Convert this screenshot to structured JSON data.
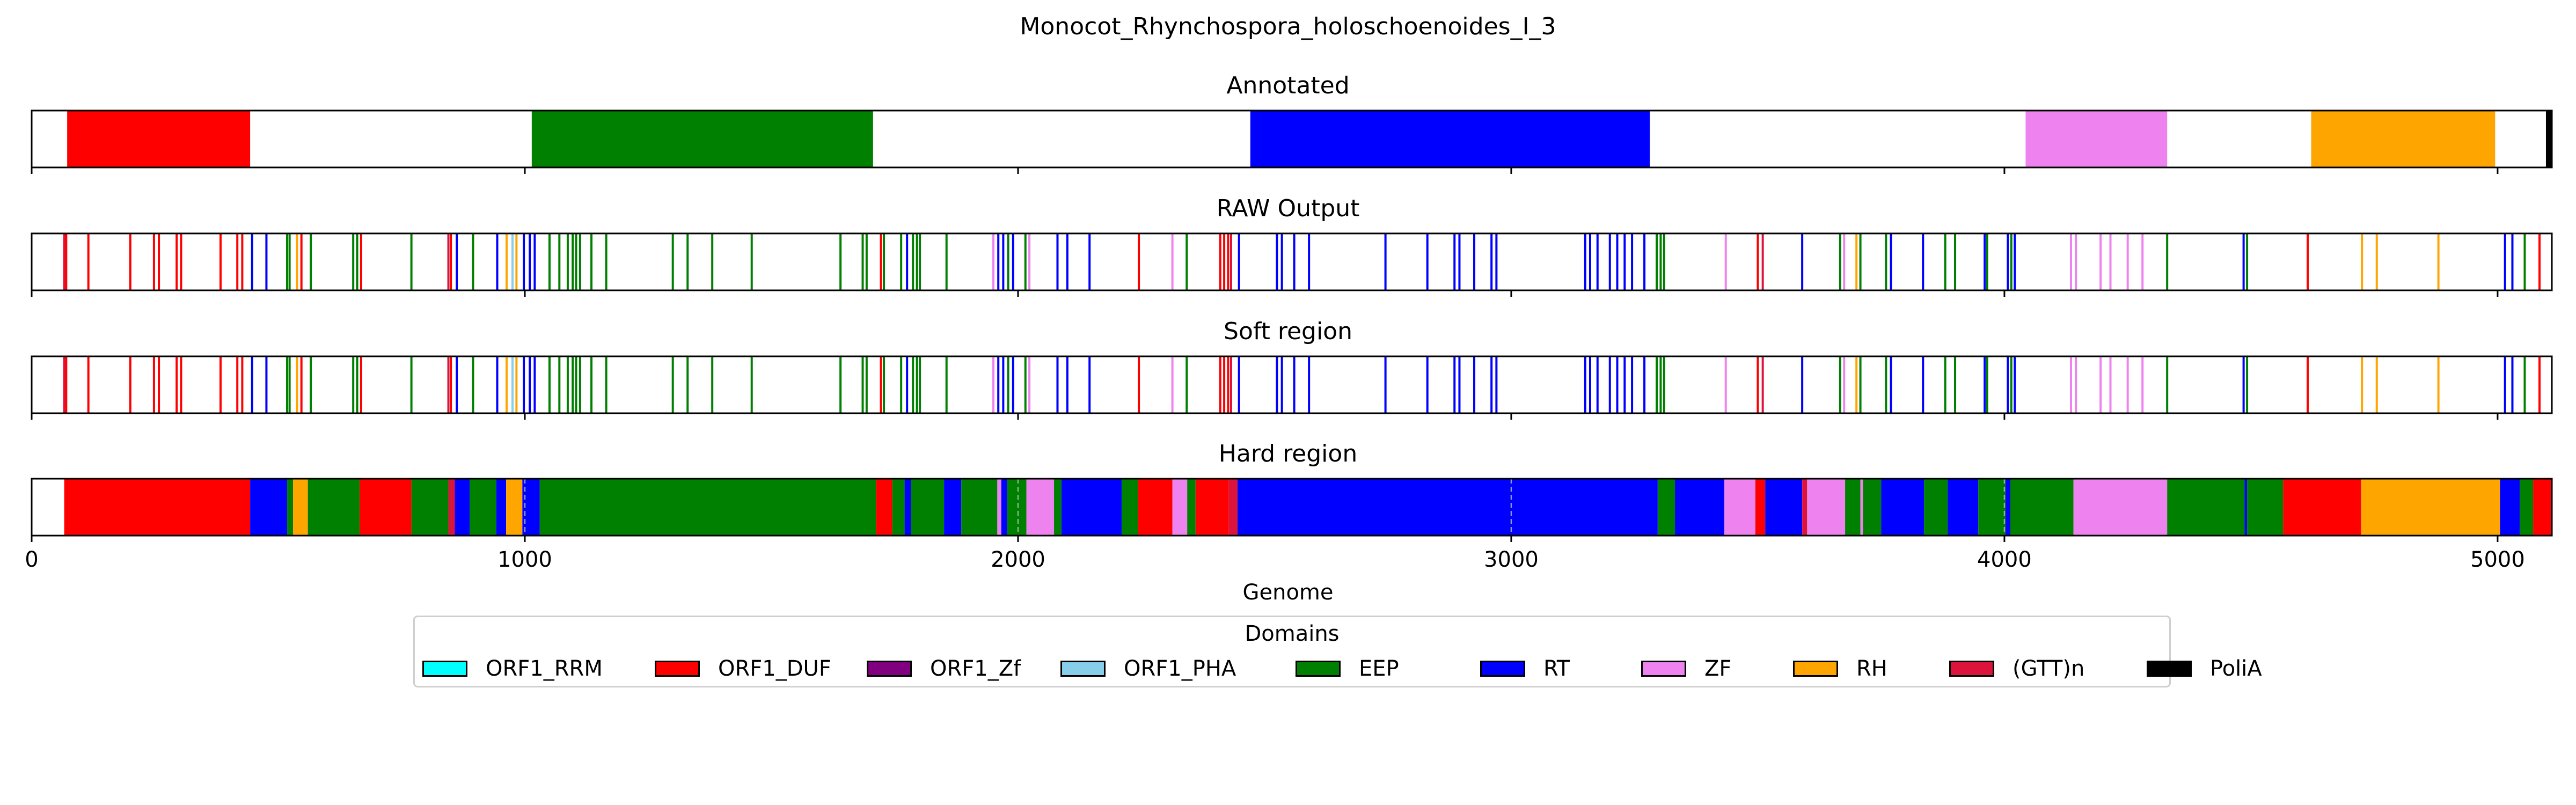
{
  "chart_data": {
    "type": "bar",
    "title": "Monocot_Rhynchospora_holoschoenoides_I_3",
    "xlabel": "Genome",
    "xlim": [
      0,
      5110
    ],
    "xticks": [
      0,
      1000,
      2000,
      3000,
      4000,
      5000
    ],
    "grid": "vertical dashed lines on Hard region",
    "legend": {
      "title": "Domains",
      "placement": "below",
      "entries": [
        {
          "name": "ORF1_RRM",
          "color": "#00ffff"
        },
        {
          "name": "ORF1_DUF",
          "color": "#ff0000"
        },
        {
          "name": "ORF1_Zf",
          "color": "#800080"
        },
        {
          "name": "ORF1_PHA",
          "color": "#87ceeb"
        },
        {
          "name": "EEP",
          "color": "#008000"
        },
        {
          "name": "RT",
          "color": "#0000ff"
        },
        {
          "name": "ZF",
          "color": "#ee82ee"
        },
        {
          "name": "RH",
          "color": "#ffa500"
        },
        {
          "name": "(GTT)n",
          "color": "#dc143c"
        },
        {
          "name": "PoliA",
          "color": "#000000"
        }
      ]
    },
    "tracks": [
      {
        "name": "Annotated",
        "kind": "segments",
        "segments": [
          {
            "domain": "ORF1_DUF",
            "start": 72,
            "end": 443
          },
          {
            "domain": "EEP",
            "start": 1014,
            "end": 1706
          },
          {
            "domain": "RT",
            "start": 2471,
            "end": 3281
          },
          {
            "domain": "ZF",
            "start": 4043,
            "end": 4330
          },
          {
            "domain": "RH",
            "start": 4622,
            "end": 4995
          },
          {
            "domain": "PoliA",
            "start": 5098,
            "end": 5110
          }
        ]
      },
      {
        "name": "RAW Output",
        "kind": "lines",
        "lines": [
          {
            "domain": "(GTT)n",
            "x": 66
          },
          {
            "domain": "ORF1_DUF",
            "x": 70
          },
          {
            "domain": "ORF1_DUF",
            "x": 115
          },
          {
            "domain": "ORF1_DUF",
            "x": 200
          },
          {
            "domain": "ORF1_DUF",
            "x": 248
          },
          {
            "domain": "ORF1_DUF",
            "x": 258
          },
          {
            "domain": "ORF1_DUF",
            "x": 294
          },
          {
            "domain": "ORF1_DUF",
            "x": 303
          },
          {
            "domain": "ORF1_DUF",
            "x": 383
          },
          {
            "domain": "ORF1_DUF",
            "x": 417
          },
          {
            "domain": "ORF1_DUF",
            "x": 427
          },
          {
            "domain": "RT",
            "x": 447
          },
          {
            "domain": "RT",
            "x": 476
          },
          {
            "domain": "EEP",
            "x": 518
          },
          {
            "domain": "EEP",
            "x": 523
          },
          {
            "domain": "RH",
            "x": 538
          },
          {
            "domain": "ORF1_DUF",
            "x": 547
          },
          {
            "domain": "EEP",
            "x": 566
          },
          {
            "domain": "EEP",
            "x": 652
          },
          {
            "domain": "EEP",
            "x": 660
          },
          {
            "domain": "ORF1_DUF",
            "x": 668
          },
          {
            "domain": "EEP",
            "x": 770
          },
          {
            "domain": "(GTT)n",
            "x": 845
          },
          {
            "domain": "ORF1_DUF",
            "x": 850
          },
          {
            "domain": "RT",
            "x": 862
          },
          {
            "domain": "EEP",
            "x": 895
          },
          {
            "domain": "RT",
            "x": 944
          },
          {
            "domain": "RH",
            "x": 963
          },
          {
            "domain": "ORF1_PHA",
            "x": 975
          },
          {
            "domain": "RH",
            "x": 983
          },
          {
            "domain": "RT",
            "x": 998
          },
          {
            "domain": "RT",
            "x": 1010
          },
          {
            "domain": "RT",
            "x": 1020
          },
          {
            "domain": "EEP",
            "x": 1050
          },
          {
            "domain": "EEP",
            "x": 1070
          },
          {
            "domain": "EEP",
            "x": 1087
          },
          {
            "domain": "EEP",
            "x": 1097
          },
          {
            "domain": "EEP",
            "x": 1104
          },
          {
            "domain": "EEP",
            "x": 1112
          },
          {
            "domain": "EEP",
            "x": 1135
          },
          {
            "domain": "EEP",
            "x": 1165
          },
          {
            "domain": "EEP",
            "x": 1300
          },
          {
            "domain": "EEP",
            "x": 1330
          },
          {
            "domain": "EEP",
            "x": 1380
          },
          {
            "domain": "EEP",
            "x": 1460
          },
          {
            "domain": "EEP",
            "x": 1640
          },
          {
            "domain": "EEP",
            "x": 1685
          },
          {
            "domain": "EEP",
            "x": 1693
          },
          {
            "domain": "ORF1_DUF",
            "x": 1722
          },
          {
            "domain": "EEP",
            "x": 1728
          },
          {
            "domain": "EEP",
            "x": 1763
          },
          {
            "domain": "RT",
            "x": 1775
          },
          {
            "domain": "EEP",
            "x": 1787
          },
          {
            "domain": "EEP",
            "x": 1795
          },
          {
            "domain": "EEP",
            "x": 1801
          },
          {
            "domain": "EEP",
            "x": 1855
          },
          {
            "domain": "ZF",
            "x": 1950
          },
          {
            "domain": "RT",
            "x": 1960
          },
          {
            "domain": "RT",
            "x": 1970
          },
          {
            "domain": "EEP",
            "x": 1980
          },
          {
            "domain": "RT",
            "x": 1990
          },
          {
            "domain": "EEP",
            "x": 2015
          },
          {
            "domain": "ZF",
            "x": 2023
          },
          {
            "domain": "RT",
            "x": 2080
          },
          {
            "domain": "RT",
            "x": 2100
          },
          {
            "domain": "RT",
            "x": 2145
          },
          {
            "domain": "ORF1_DUF",
            "x": 2245
          },
          {
            "domain": "ZF",
            "x": 2313
          },
          {
            "domain": "EEP",
            "x": 2342
          },
          {
            "domain": "ORF1_DUF",
            "x": 2410
          },
          {
            "domain": "ORF1_DUF",
            "x": 2418
          },
          {
            "domain": "ORF1_DUF",
            "x": 2426
          },
          {
            "domain": "(GTT)n",
            "x": 2432
          },
          {
            "domain": "RT",
            "x": 2448
          },
          {
            "domain": "RT",
            "x": 2525
          },
          {
            "domain": "RT",
            "x": 2535
          },
          {
            "domain": "RT",
            "x": 2560
          },
          {
            "domain": "RT",
            "x": 2590
          },
          {
            "domain": "RT",
            "x": 2745
          },
          {
            "domain": "RT",
            "x": 2830
          },
          {
            "domain": "RT",
            "x": 2885
          },
          {
            "domain": "RT",
            "x": 2895
          },
          {
            "domain": "RT",
            "x": 2925
          },
          {
            "domain": "RT",
            "x": 2960
          },
          {
            "domain": "RT",
            "x": 2970
          },
          {
            "domain": "RT",
            "x": 3150
          },
          {
            "domain": "RT",
            "x": 3160
          },
          {
            "domain": "RT",
            "x": 3175
          },
          {
            "domain": "RT",
            "x": 3200
          },
          {
            "domain": "RT",
            "x": 3215
          },
          {
            "domain": "RT",
            "x": 3230
          },
          {
            "domain": "RT",
            "x": 3245
          },
          {
            "domain": "RT",
            "x": 3270
          },
          {
            "domain": "EEP",
            "x": 3295
          },
          {
            "domain": "EEP",
            "x": 3303
          },
          {
            "domain": "EEP",
            "x": 3310
          },
          {
            "domain": "ZF",
            "x": 3435
          },
          {
            "domain": "ORF1_DUF",
            "x": 3500
          },
          {
            "domain": "(GTT)n",
            "x": 3510
          },
          {
            "domain": "RT",
            "x": 3590
          },
          {
            "domain": "EEP",
            "x": 3667
          },
          {
            "domain": "ZF",
            "x": 3675
          },
          {
            "domain": "RH",
            "x": 3700
          },
          {
            "domain": "EEP",
            "x": 3708
          },
          {
            "domain": "EEP",
            "x": 3760
          },
          {
            "domain": "RT",
            "x": 3770
          },
          {
            "domain": "RT",
            "x": 3835
          },
          {
            "domain": "EEP",
            "x": 3880
          },
          {
            "domain": "EEP",
            "x": 3900
          },
          {
            "domain": "RT",
            "x": 3960
          },
          {
            "domain": "EEP",
            "x": 3965
          },
          {
            "domain": "RT",
            "x": 4007
          },
          {
            "domain": "EEP",
            "x": 4014
          },
          {
            "domain": "RT",
            "x": 4021
          },
          {
            "domain": "ZF",
            "x": 4135
          },
          {
            "domain": "ZF",
            "x": 4145
          },
          {
            "domain": "ZF",
            "x": 4195
          },
          {
            "domain": "ZF",
            "x": 4215
          },
          {
            "domain": "ZF",
            "x": 4250
          },
          {
            "domain": "ZF",
            "x": 4280
          },
          {
            "domain": "EEP",
            "x": 4330
          },
          {
            "domain": "RT",
            "x": 4485
          },
          {
            "domain": "EEP",
            "x": 4492
          },
          {
            "domain": "ORF1_DUF",
            "x": 4615
          },
          {
            "domain": "RH",
            "x": 4725
          },
          {
            "domain": "RH",
            "x": 4755
          },
          {
            "domain": "RH",
            "x": 4880
          },
          {
            "domain": "RT",
            "x": 5015
          },
          {
            "domain": "RT",
            "x": 5030
          },
          {
            "domain": "EEP",
            "x": 5055
          },
          {
            "domain": "ORF1_DUF",
            "x": 5085
          }
        ]
      },
      {
        "name": "Soft region",
        "kind": "lines",
        "same_as": "RAW Output"
      },
      {
        "name": "Hard region",
        "kind": "segments",
        "segments": [
          {
            "domain": "ORF1_DUF",
            "start": 66,
            "end": 443
          },
          {
            "domain": "RT",
            "start": 443,
            "end": 518
          },
          {
            "domain": "EEP",
            "start": 518,
            "end": 530
          },
          {
            "domain": "RH",
            "start": 530,
            "end": 560
          },
          {
            "domain": "EEP",
            "start": 560,
            "end": 665
          },
          {
            "domain": "ORF1_DUF",
            "start": 665,
            "end": 770
          },
          {
            "domain": "EEP",
            "start": 770,
            "end": 845
          },
          {
            "domain": "(GTT)n",
            "start": 845,
            "end": 858
          },
          {
            "domain": "RT",
            "start": 858,
            "end": 888
          },
          {
            "domain": "EEP",
            "start": 888,
            "end": 942
          },
          {
            "domain": "RT",
            "start": 942,
            "end": 962
          },
          {
            "domain": "RH",
            "start": 962,
            "end": 995
          },
          {
            "domain": "RT",
            "start": 995,
            "end": 1030
          },
          {
            "domain": "EEP",
            "start": 1030,
            "end": 1712
          },
          {
            "domain": "ORF1_DUF",
            "start": 1712,
            "end": 1745
          },
          {
            "domain": "EEP",
            "start": 1745,
            "end": 1770
          },
          {
            "domain": "RT",
            "start": 1770,
            "end": 1783
          },
          {
            "domain": "EEP",
            "start": 1783,
            "end": 1850
          },
          {
            "domain": "RT",
            "start": 1850,
            "end": 1885
          },
          {
            "domain": "EEP",
            "start": 1885,
            "end": 1958
          },
          {
            "domain": "ZF",
            "start": 1958,
            "end": 1966
          },
          {
            "domain": "RT",
            "start": 1966,
            "end": 1978
          },
          {
            "domain": "EEP",
            "start": 1978,
            "end": 2017
          },
          {
            "domain": "ZF",
            "start": 2017,
            "end": 2073
          },
          {
            "domain": "EEP",
            "start": 2073,
            "end": 2088
          },
          {
            "domain": "RT",
            "start": 2088,
            "end": 2210
          },
          {
            "domain": "EEP",
            "start": 2210,
            "end": 2243
          },
          {
            "domain": "ORF1_DUF",
            "start": 2243,
            "end": 2313
          },
          {
            "domain": "ZF",
            "start": 2313,
            "end": 2343
          },
          {
            "domain": "EEP",
            "start": 2343,
            "end": 2360
          },
          {
            "domain": "ORF1_DUF",
            "start": 2360,
            "end": 2427
          },
          {
            "domain": "(GTT)n",
            "start": 2427,
            "end": 2445
          },
          {
            "domain": "RT",
            "start": 2445,
            "end": 3297
          },
          {
            "domain": "EEP",
            "start": 3297,
            "end": 3332
          },
          {
            "domain": "RT",
            "start": 3332,
            "end": 3432
          },
          {
            "domain": "ZF",
            "start": 3432,
            "end": 3495
          },
          {
            "domain": "ORF1_DUF",
            "start": 3495,
            "end": 3515
          },
          {
            "domain": "RT",
            "start": 3515,
            "end": 3590
          },
          {
            "domain": "(GTT)n",
            "start": 3590,
            "end": 3600
          },
          {
            "domain": "ZF",
            "start": 3600,
            "end": 3677
          },
          {
            "domain": "EEP",
            "start": 3677,
            "end": 3708
          },
          {
            "domain": "ZF",
            "start": 3708,
            "end": 3713
          },
          {
            "domain": "EEP",
            "start": 3713,
            "end": 3750
          },
          {
            "domain": "RT",
            "start": 3750,
            "end": 3837
          },
          {
            "domain": "EEP",
            "start": 3837,
            "end": 3885
          },
          {
            "domain": "RT",
            "start": 3885,
            "end": 3947
          },
          {
            "domain": "EEP",
            "start": 3947,
            "end": 4002
          },
          {
            "domain": "RT",
            "start": 4002,
            "end": 4012
          },
          {
            "domain": "EEP",
            "start": 4012,
            "end": 4140
          },
          {
            "domain": "ZF",
            "start": 4140,
            "end": 4330
          },
          {
            "domain": "EEP",
            "start": 4330,
            "end": 4487
          },
          {
            "domain": "RT",
            "start": 4487,
            "end": 4492
          },
          {
            "domain": "EEP",
            "start": 4492,
            "end": 4565
          },
          {
            "domain": "ORF1_DUF",
            "start": 4565,
            "end": 4723
          },
          {
            "domain": "RH",
            "start": 4723,
            "end": 5005
          },
          {
            "domain": "RT",
            "start": 5005,
            "end": 5045
          },
          {
            "domain": "EEP",
            "start": 5045,
            "end": 5072
          },
          {
            "domain": "ORF1_DUF",
            "start": 5072,
            "end": 5110
          }
        ],
        "gridlines": [
          1000,
          2000,
          3000,
          4000
        ]
      }
    ]
  }
}
